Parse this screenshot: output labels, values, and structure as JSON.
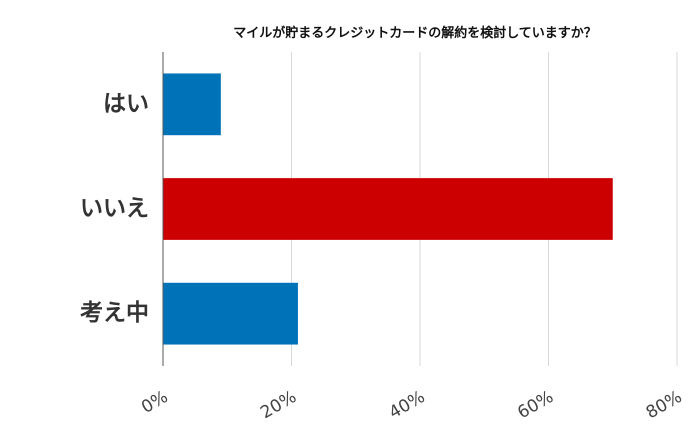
{
  "chart_data": {
    "type": "bar",
    "orientation": "horizontal",
    "title": "マイルが貯まるクレジットカードの解約を検討していますか？",
    "categories": [
      "はい",
      "いいえ",
      "考え中"
    ],
    "values": [
      9,
      70,
      21
    ],
    "value_unit": "%",
    "xlim": [
      0,
      80
    ],
    "xticks": [
      "0%",
      "20%",
      "40%",
      "60%",
      "80%"
    ],
    "grid": "vertical",
    "legend": "none",
    "colors": [
      "#0072b8",
      "#cc0000",
      "#0072b8"
    ]
  }
}
